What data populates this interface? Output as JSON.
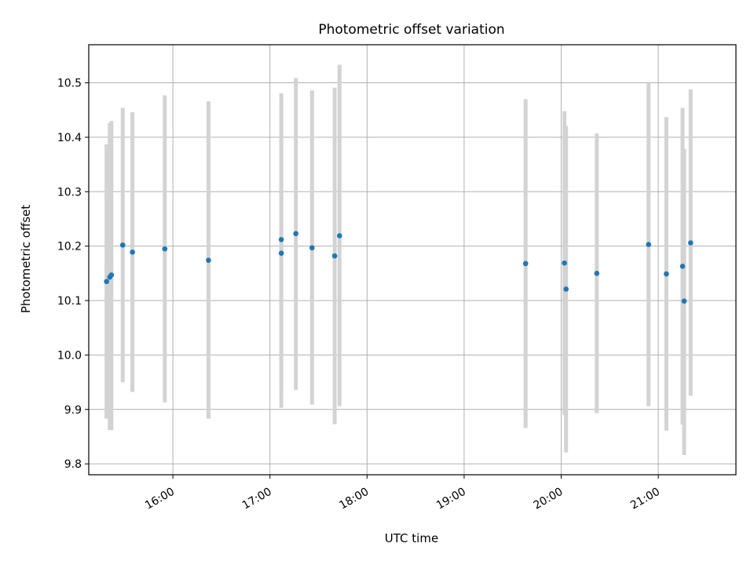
{
  "chart_data": {
    "type": "scatter",
    "title": "Photometric offset variation",
    "xlabel": "UTC time",
    "ylabel": "Photometric offset",
    "x_tick_labels": [
      "16:00",
      "17:00",
      "18:00",
      "19:00",
      "20:00",
      "21:00"
    ],
    "y_ticks": [
      9.8,
      9.9,
      10.0,
      10.1,
      10.2,
      10.3,
      10.4,
      10.5
    ],
    "y_tick_labels": [
      "9.8",
      "9.9",
      "10.0",
      "10.1",
      "10.2",
      "10.3",
      "10.4",
      "10.5"
    ],
    "xlim": [
      "15:08",
      "21:48"
    ],
    "ylim": [
      9.78,
      10.57
    ],
    "grid": true,
    "legend": "none",
    "colors": {
      "point": "#1f77b4",
      "errorbar": "#d3d3d3",
      "grid": "#b0b0b0"
    },
    "series": [
      {
        "points": [
          {
            "x": "15:19",
            "y": 10.135,
            "ylow": 9.883,
            "yhigh": 10.387
          },
          {
            "x": "15:21",
            "y": 10.143,
            "ylow": 9.862,
            "yhigh": 10.426
          },
          {
            "x": "15:22",
            "y": 10.147,
            "ylow": 9.862,
            "yhigh": 10.43
          },
          {
            "x": "15:29",
            "y": 10.202,
            "ylow": 9.95,
            "yhigh": 10.454
          },
          {
            "x": "15:35",
            "y": 10.189,
            "ylow": 9.932,
            "yhigh": 10.446
          },
          {
            "x": "15:55",
            "y": 10.195,
            "ylow": 9.913,
            "yhigh": 10.477
          },
          {
            "x": "16:22",
            "y": 10.174,
            "ylow": 9.883,
            "yhigh": 10.466
          },
          {
            "x": "17:07",
            "y": 10.212,
            "ylow": 9.943,
            "yhigh": 10.481
          },
          {
            "x": "17:07",
            "y": 10.187,
            "ylow": 9.903,
            "yhigh": 10.471
          },
          {
            "x": "17:16",
            "y": 10.223,
            "ylow": 9.936,
            "yhigh": 10.509
          },
          {
            "x": "17:26",
            "y": 10.197,
            "ylow": 9.909,
            "yhigh": 10.486
          },
          {
            "x": "17:40",
            "y": 10.182,
            "ylow": 9.873,
            "yhigh": 10.491
          },
          {
            "x": "17:43",
            "y": 10.219,
            "ylow": 9.906,
            "yhigh": 10.533
          },
          {
            "x": "19:38",
            "y": 10.168,
            "ylow": 9.866,
            "yhigh": 10.47
          },
          {
            "x": "20:02",
            "y": 10.169,
            "ylow": 9.89,
            "yhigh": 10.448
          },
          {
            "x": "20:03",
            "y": 10.121,
            "ylow": 9.821,
            "yhigh": 10.421
          },
          {
            "x": "20:22",
            "y": 10.15,
            "ylow": 9.893,
            "yhigh": 10.407
          },
          {
            "x": "20:54",
            "y": 10.203,
            "ylow": 9.906,
            "yhigh": 10.5
          },
          {
            "x": "21:05",
            "y": 10.149,
            "ylow": 9.861,
            "yhigh": 10.437
          },
          {
            "x": "21:15",
            "y": 10.163,
            "ylow": 9.872,
            "yhigh": 10.454
          },
          {
            "x": "21:16",
            "y": 10.099,
            "ylow": 9.816,
            "yhigh": 10.379
          },
          {
            "x": "21:20",
            "y": 10.206,
            "ylow": 9.925,
            "yhigh": 10.488
          }
        ]
      }
    ]
  }
}
